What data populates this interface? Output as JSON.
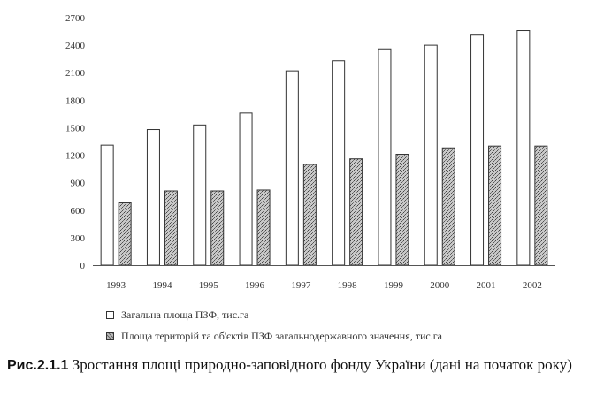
{
  "chart_data": {
    "type": "bar",
    "categories": [
      "1993",
      "1994",
      "1995",
      "1996",
      "1997",
      "1998",
      "1999",
      "2000",
      "2001",
      "2002"
    ],
    "series": [
      {
        "name": "Загальна площа ПЗФ, тис.га",
        "values": [
          1310,
          1480,
          1530,
          1660,
          2120,
          2230,
          2360,
          2400,
          2510,
          2560
        ],
        "color": "#ffffff"
      },
      {
        "name": "Площа територій та об'єктів ПЗФ загальнодержавного значення, тис.га",
        "values": [
          680,
          810,
          810,
          820,
          1100,
          1160,
          1210,
          1280,
          1300,
          1300
        ],
        "color": "#9a9a9a"
      }
    ],
    "yticks": [
      "0",
      "300",
      "600",
      "900",
      "1200",
      "1500",
      "1800",
      "2100",
      "2400",
      "2700"
    ],
    "ylim": [
      0,
      2700
    ],
    "grid": false,
    "legend_position": "bottom"
  },
  "caption": {
    "number": "Рис.2.1.1",
    "text": "Зростання площі природно-заповідного фонду України (дані на початок року)"
  }
}
